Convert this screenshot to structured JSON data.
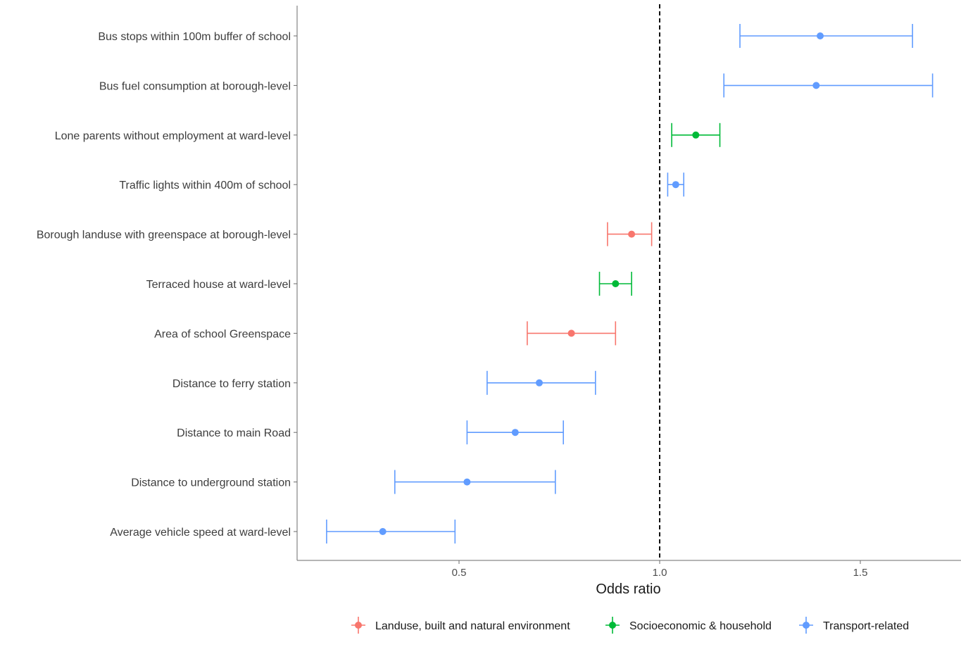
{
  "chart_data": {
    "type": "forest",
    "xlabel": "Odds ratio",
    "ylabel": "",
    "xlim": [
      0.1,
      1.75
    ],
    "x_ticks": [
      "0.5",
      "1.0",
      "1.5"
    ],
    "reference_line": 1.0,
    "grid": false,
    "legend_position": "bottom",
    "groups": [
      {
        "name": "Landuse, built and natural environment",
        "color": "#F8766D"
      },
      {
        "name": "Socioeconomic & household",
        "color": "#00BA38"
      },
      {
        "name": "Transport-related",
        "color": "#619CFF"
      }
    ],
    "rows": [
      {
        "label": "Bus stops within 100m buffer of school",
        "group": "Transport-related",
        "or": 1.4,
        "lower": 1.2,
        "upper": 1.63
      },
      {
        "label": "Bus fuel consumption at borough-level",
        "group": "Transport-related",
        "or": 1.39,
        "lower": 1.16,
        "upper": 1.68
      },
      {
        "label": "Lone parents without employment at ward-level",
        "group": "Socioeconomic & household",
        "or": 1.09,
        "lower": 1.03,
        "upper": 1.15
      },
      {
        "label": "Traffic lights within 400m of school",
        "group": "Transport-related",
        "or": 1.04,
        "lower": 1.02,
        "upper": 1.06
      },
      {
        "label": "Borough landuse with greenspace at borough-level",
        "group": "Landuse, built and natural environment",
        "or": 0.93,
        "lower": 0.87,
        "upper": 0.98
      },
      {
        "label": "Terraced house at ward-level",
        "group": "Socioeconomic & household",
        "or": 0.89,
        "lower": 0.85,
        "upper": 0.93
      },
      {
        "label": "Area of school Greenspace",
        "group": "Landuse, built and natural environment",
        "or": 0.78,
        "lower": 0.67,
        "upper": 0.89
      },
      {
        "label": "Distance to ferry station",
        "group": "Transport-related",
        "or": 0.7,
        "lower": 0.57,
        "upper": 0.84
      },
      {
        "label": "Distance to main Road",
        "group": "Transport-related",
        "or": 0.64,
        "lower": 0.52,
        "upper": 0.76
      },
      {
        "label": "Distance to underground station",
        "group": "Transport-related",
        "or": 0.52,
        "lower": 0.34,
        "upper": 0.74
      },
      {
        "label": "Average vehicle speed at ward-level",
        "group": "Transport-related",
        "or": 0.31,
        "lower": 0.17,
        "upper": 0.49
      }
    ]
  }
}
